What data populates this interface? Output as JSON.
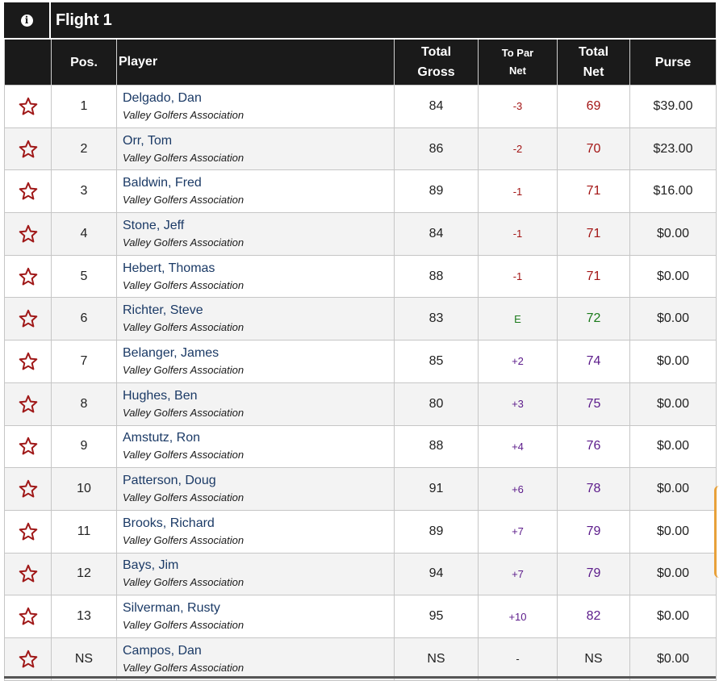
{
  "flight": {
    "title": "Flight 1",
    "info_icon": "info-icon"
  },
  "columns": {
    "pos": "Pos.",
    "player": "Player",
    "gross_line1": "Total",
    "gross_line2": "Gross",
    "topar_line1": "To Par",
    "topar_line2": "Net",
    "net_line1": "Total",
    "net_line2": "Net",
    "purse": "Purse"
  },
  "colors": {
    "under_par": "#a31515",
    "even_par": "#1a7a1a",
    "over_par": "#5b1a8a",
    "favorite_star": "#a01818",
    "player_link": "#1b3a66"
  },
  "rows": [
    {
      "pos": "1",
      "name": "Delgado, Dan",
      "assoc": "Valley Golfers Association",
      "gross": "84",
      "topar": "-3",
      "net": "69",
      "purse": "$39.00",
      "status": "under"
    },
    {
      "pos": "2",
      "name": "Orr, Tom",
      "assoc": "Valley Golfers Association",
      "gross": "86",
      "topar": "-2",
      "net": "70",
      "purse": "$23.00",
      "status": "under"
    },
    {
      "pos": "3",
      "name": "Baldwin, Fred",
      "assoc": "Valley Golfers Association",
      "gross": "89",
      "topar": "-1",
      "net": "71",
      "purse": "$16.00",
      "status": "under"
    },
    {
      "pos": "4",
      "name": "Stone, Jeff",
      "assoc": "Valley Golfers Association",
      "gross": "84",
      "topar": "-1",
      "net": "71",
      "purse": "$0.00",
      "status": "under"
    },
    {
      "pos": "5",
      "name": "Hebert, Thomas",
      "assoc": "Valley Golfers Association",
      "gross": "88",
      "topar": "-1",
      "net": "71",
      "purse": "$0.00",
      "status": "under"
    },
    {
      "pos": "6",
      "name": "Richter, Steve",
      "assoc": "Valley Golfers Association",
      "gross": "83",
      "topar": "E",
      "net": "72",
      "purse": "$0.00",
      "status": "even"
    },
    {
      "pos": "7",
      "name": "Belanger, James",
      "assoc": "Valley Golfers Association",
      "gross": "85",
      "topar": "+2",
      "net": "74",
      "purse": "$0.00",
      "status": "over"
    },
    {
      "pos": "8",
      "name": "Hughes, Ben",
      "assoc": "Valley Golfers Association",
      "gross": "80",
      "topar": "+3",
      "net": "75",
      "purse": "$0.00",
      "status": "over"
    },
    {
      "pos": "9",
      "name": "Amstutz, Ron",
      "assoc": "Valley Golfers Association",
      "gross": "88",
      "topar": "+4",
      "net": "76",
      "purse": "$0.00",
      "status": "over"
    },
    {
      "pos": "10",
      "name": "Patterson, Doug",
      "assoc": "Valley Golfers Association",
      "gross": "91",
      "topar": "+6",
      "net": "78",
      "purse": "$0.00",
      "status": "over"
    },
    {
      "pos": "11",
      "name": "Brooks, Richard",
      "assoc": "Valley Golfers Association",
      "gross": "89",
      "topar": "+7",
      "net": "79",
      "purse": "$0.00",
      "status": "over"
    },
    {
      "pos": "12",
      "name": "Bays, Jim",
      "assoc": "Valley Golfers Association",
      "gross": "94",
      "topar": "+7",
      "net": "79",
      "purse": "$0.00",
      "status": "over"
    },
    {
      "pos": "13",
      "name": "Silverman, Rusty",
      "assoc": "Valley Golfers Association",
      "gross": "95",
      "topar": "+10",
      "net": "82",
      "purse": "$0.00",
      "status": "over"
    },
    {
      "pos": "NS",
      "name": "Campos, Dan",
      "assoc": "Valley Golfers Association",
      "gross": "NS",
      "topar": "-",
      "net": "NS",
      "purse": "$0.00",
      "status": "none"
    }
  ]
}
